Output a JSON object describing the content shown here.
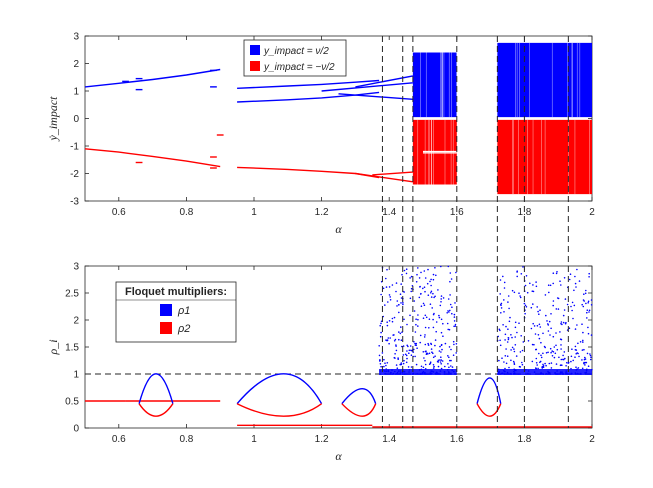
{
  "chart_data": [
    {
      "type": "scatter",
      "panel": "top",
      "xlabel": "α",
      "ylabel": "ẏ_impact",
      "xlim": [
        0.5,
        2.0
      ],
      "ylim": [
        -3,
        3
      ],
      "xticks": [
        0.6,
        0.8,
        1.0,
        1.2,
        1.4,
        1.6,
        1.8,
        2.0
      ],
      "xtick_labels": [
        "0.6",
        "0.8",
        "1",
        "1.2",
        "1.4",
        "1.6",
        "1.8",
        "2"
      ],
      "yticks": [
        -3,
        -2,
        -1,
        0,
        1,
        2,
        3
      ],
      "ytick_labels": [
        "-3",
        "-2",
        "-1",
        "0",
        "1",
        "2",
        "3"
      ],
      "legend": {
        "placement": "top-center",
        "entries": [
          {
            "label": "y_impact = ν/2",
            "color": "#0000ff"
          },
          {
            "label": "y_impact = −ν/2",
            "color": "#ff0000"
          }
        ]
      },
      "series": [
        {
          "name": "y_impact = ν/2",
          "color": "#0000ff",
          "branches": [
            {
              "x": [
                0.5,
                0.6,
                0.7,
                0.8,
                0.9
              ],
              "y": [
                1.15,
                1.28,
                1.42,
                1.58,
                1.78
              ]
            },
            {
              "x": [
                0.95,
                1.1,
                1.2,
                1.3,
                1.37
              ],
              "y": [
                1.1,
                1.18,
                1.24,
                1.32,
                1.38
              ]
            },
            {
              "x": [
                0.95,
                1.1,
                1.2,
                1.3,
                1.37
              ],
              "y": [
                0.6,
                0.68,
                0.75,
                0.85,
                0.95
              ]
            }
          ],
          "chaotic_bands": [
            {
              "x": [
                1.47,
                1.6
              ],
              "y": [
                0.05,
                2.4
              ]
            },
            {
              "x": [
                1.72,
                2.0
              ],
              "y": [
                0.05,
                2.75
              ]
            }
          ]
        },
        {
          "name": "y_impact = −ν/2",
          "color": "#ff0000",
          "branches": [
            {
              "x": [
                0.5,
                0.6,
                0.7,
                0.8,
                0.9
              ],
              "y": [
                -1.1,
                -1.22,
                -1.38,
                -1.55,
                -1.75
              ]
            },
            {
              "x": [
                0.95,
                1.1,
                1.2,
                1.3,
                1.37
              ],
              "y": [
                -1.78,
                -1.85,
                -1.92,
                -2.0,
                -2.15
              ]
            }
          ],
          "chaotic_bands": [
            {
              "x": [
                1.47,
                1.6
              ],
              "y": [
                -2.4,
                -0.05
              ]
            },
            {
              "x": [
                1.72,
                2.0
              ],
              "y": [
                -2.75,
                -0.05
              ]
            }
          ]
        }
      ]
    },
    {
      "type": "scatter",
      "panel": "bottom",
      "xlabel": "α",
      "ylabel": "ρ_i",
      "xlim": [
        0.5,
        2.0
      ],
      "ylim": [
        0,
        3
      ],
      "xticks": [
        0.6,
        0.8,
        1.0,
        1.2,
        1.4,
        1.6,
        1.8,
        2.0
      ],
      "xtick_labels": [
        "0.6",
        "0.8",
        "1",
        "1.2",
        "1.4",
        "1.6",
        "1.8",
        "2"
      ],
      "yticks": [
        0,
        0.5,
        1,
        1.5,
        2,
        2.5,
        3
      ],
      "ytick_labels": [
        "0",
        "0.5",
        "1",
        "1.5",
        "2",
        "2.5",
        "3"
      ],
      "reference_line": {
        "y": 1,
        "style": "dashed"
      },
      "legend": {
        "title": "Floquet multipliers:",
        "placement": "top-left",
        "entries": [
          {
            "label": "ρ1",
            "color": "#0000ff"
          },
          {
            "label": "ρ2",
            "color": "#ff0000"
          }
        ]
      },
      "series": [
        {
          "name": "ρ1",
          "color": "#0000ff",
          "lobes": [
            {
              "x": [
                0.66,
                0.71,
                0.76
              ],
              "peak": 1.0
            },
            {
              "x": [
                0.95,
                1.1,
                1.2
              ],
              "peak": 1.0
            },
            {
              "x": [
                1.26,
                1.33,
                1.36
              ],
              "peak": 0.45
            },
            {
              "x": [
                1.66,
                1.7,
                1.73
              ],
              "peak": 0.85
            }
          ],
          "scatter_regions": [
            {
              "x": [
                1.37,
                1.6
              ],
              "y": [
                1.0,
                3.0
              ]
            },
            {
              "x": [
                1.72,
                2.0
              ],
              "y": [
                1.0,
                3.0
              ]
            }
          ]
        },
        {
          "name": "ρ2",
          "color": "#ff0000",
          "baseline": [
            {
              "x": [
                0.5,
                0.62
              ],
              "y": 0.5
            },
            {
              "x": [
                0.62,
                0.9
              ],
              "y": 0.5
            },
            {
              "x": [
                0.95,
                1.35
              ],
              "y": 0.05
            }
          ]
        }
      ]
    }
  ],
  "bifurcation_lines": {
    "x": [
      1.38,
      1.44,
      1.47,
      1.6,
      1.72,
      1.8,
      1.93
    ]
  }
}
